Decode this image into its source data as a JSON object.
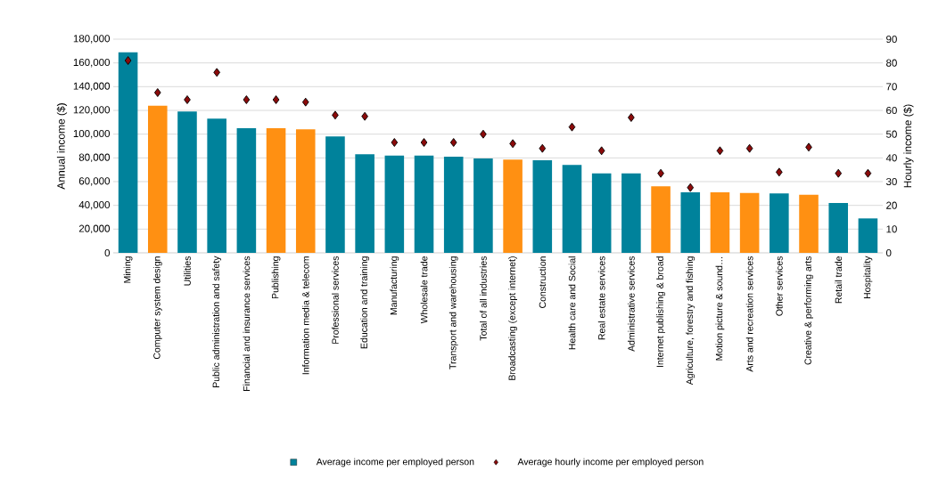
{
  "chart_data": {
    "type": "bar",
    "ylabel": "Annual income ($)",
    "y2label": "Hourly income ($)",
    "categories": [
      "Mining",
      "Computer system design",
      "Utilities",
      "Public administration and safety",
      "Financial and insurance services",
      "Publishing",
      "Information media & telecom",
      "Professional services",
      "Education and training",
      "Manufacturing",
      "Wholesale trade",
      "Transport and warehousing",
      "Total of all industries",
      "Broadcasting (except internet)",
      "Construction",
      "Health care and Social",
      "Real estate services",
      "Administrative services",
      "Internet publishing & broad",
      "Agriculture, forestry and fishing",
      "Motion picture & sound…",
      "Arts and recreation services",
      "Other services",
      "Creative & performing arts",
      "Retail trade",
      "Hospitality"
    ],
    "series": [
      {
        "name": "Average income per employed person",
        "color": "#00829b",
        "colors": [
          "#00829b",
          "#ff9012",
          "#00829b",
          "#00829b",
          "#00829b",
          "#ff9012",
          "#ff9012",
          "#00829b",
          "#00829b",
          "#00829b",
          "#00829b",
          "#00829b",
          "#00829b",
          "#ff9012",
          "#00829b",
          "#00829b",
          "#00829b",
          "#00829b",
          "#ff9012",
          "#00829b",
          "#ff9012",
          "#ff9012",
          "#00829b",
          "#ff9012",
          "#00829b",
          "#00829b"
        ],
        "values": [
          169000,
          124000,
          119000,
          113000,
          105000,
          105000,
          104000,
          98000,
          83000,
          82000,
          82000,
          81000,
          79500,
          78500,
          78000,
          74000,
          67000,
          67000,
          56000,
          51000,
          51000,
          50500,
          50000,
          49000,
          42000,
          29000
        ]
      },
      {
        "name": "Average hourly income per employed person",
        "type": "scatter",
        "axis": "y2",
        "color": "#8b0a0a",
        "marker": "diamond",
        "values": [
          81,
          67.5,
          64.5,
          76,
          64.5,
          64.5,
          63.5,
          58,
          57.5,
          46.5,
          46.5,
          46.5,
          50,
          46,
          44,
          53,
          43,
          57,
          33.5,
          27.5,
          43,
          44,
          34,
          44.5,
          33.5,
          33.5
        ]
      }
    ],
    "ylim": [
      0,
      180000
    ],
    "yticks": [
      0,
      {
        "value": 20000,
        "label": "20,000"
      },
      {
        "value": 40000,
        "label": "40,000"
      },
      {
        "value": 60000,
        "label": "60,000"
      },
      {
        "value": 80000,
        "label": "80,000"
      },
      {
        "value": 100000,
        "label": "100,000"
      },
      {
        "value": 120000,
        "label": "120,000"
      },
      {
        "value": 140000,
        "label": "140,000"
      },
      {
        "value": 160000,
        "label": "160,000"
      },
      {
        "value": 180000,
        "label": "180,000"
      }
    ],
    "y2lim": [
      0,
      90
    ],
    "y2ticks": [
      0,
      10,
      20,
      30,
      40,
      50,
      60,
      70,
      80,
      90
    ],
    "grid": "y",
    "legend": "bottom"
  }
}
